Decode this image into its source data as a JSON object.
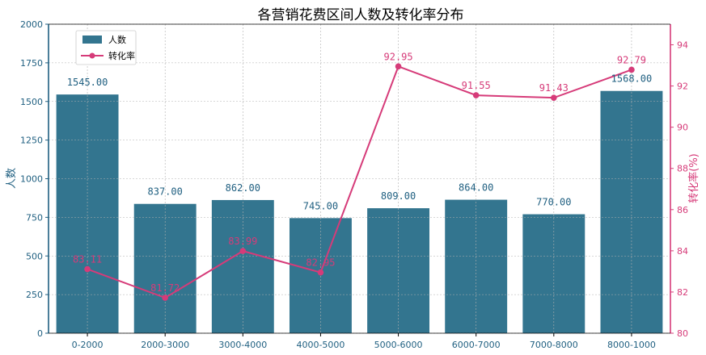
{
  "chart_data": {
    "type": "bar+line",
    "title": "各营销花费区间人数及转化率分布",
    "categories": [
      "0-2000",
      "2000-3000",
      "3000-4000",
      "4000-5000",
      "5000-6000",
      "6000-7000",
      "7000-8000",
      "8000-1000"
    ],
    "series": [
      {
        "name": "人数",
        "type": "bar",
        "axis": "left",
        "values": [
          1545.0,
          837.0,
          862.0,
          745.0,
          809.0,
          864.0,
          770.0,
          1568.0
        ],
        "labels": [
          "1545.00",
          "837.00",
          "862.00",
          "745.00",
          "809.00",
          "864.00",
          "770.00",
          "1568.00"
        ],
        "color": "#33758f"
      },
      {
        "name": "转化率",
        "type": "line",
        "axis": "right",
        "values": [
          83.11,
          81.72,
          83.99,
          82.95,
          92.95,
          91.55,
          91.43,
          92.79
        ],
        "labels": [
          "83.11",
          "81.72",
          "83.99",
          "82.95",
          "92.95",
          "91.55",
          "91.43",
          "92.79"
        ],
        "color": "#d63b79"
      }
    ],
    "ylabel_left": "人数",
    "ylabel_right": "转化率(%)",
    "ylim_left": [
      0,
      2000
    ],
    "yticks_left": [
      0,
      250,
      500,
      750,
      1000,
      1250,
      1500,
      1750,
      2000
    ],
    "ylim_right": [
      80,
      95
    ],
    "yticks_right": [
      80,
      82,
      84,
      86,
      88,
      90,
      92,
      94
    ],
    "grid": true,
    "legend_placement": "upper-left",
    "left_axis_color": "#1f5f80",
    "right_axis_color": "#d63b79"
  }
}
